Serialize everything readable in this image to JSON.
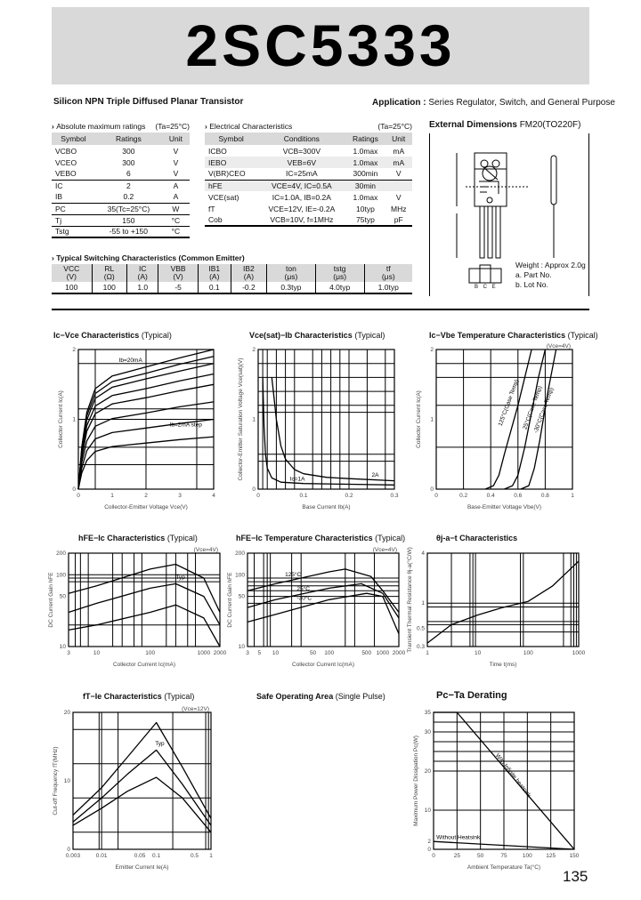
{
  "header": {
    "part_number": "2SC5333"
  },
  "subtitle": "Silicon NPN Triple Diffused Planar Transistor",
  "application": {
    "label": "Application :",
    "value": "Series Regulator, Switch, and General Purpose"
  },
  "abs_max": {
    "title": "Absolute maximum ratings",
    "cond": "(Ta=25°C)",
    "headers": [
      "Symbol",
      "Ratings",
      "Unit"
    ],
    "rows": [
      [
        "VCBO",
        "300",
        "V"
      ],
      [
        "VCEO",
        "300",
        "V"
      ],
      [
        "VEBO",
        "6",
        "V"
      ],
      [
        "IC",
        "2",
        "A"
      ],
      [
        "IB",
        "0.2",
        "A"
      ],
      [
        "PC",
        "35(Tc=25°C)",
        "W"
      ],
      [
        "Tj",
        "150",
        "°C"
      ],
      [
        "Tstg",
        "-55 to +150",
        "°C"
      ]
    ]
  },
  "elec": {
    "title": "Electrical Characteristics",
    "cond": "(Ta=25°C)",
    "headers": [
      "Symbol",
      "Conditions",
      "Ratings",
      "Unit"
    ],
    "rows": [
      [
        "ICBO",
        "VCB=300V",
        "1.0max",
        "mA"
      ],
      [
        "IEBO",
        "VEB=6V",
        "1.0max",
        "mA"
      ],
      [
        "V(BR)CEO",
        "IC=25mA",
        "300min",
        "V"
      ],
      [
        "hFE",
        "VCE=4V, IC=0.5A",
        "30min",
        ""
      ],
      [
        "VCE(sat)",
        "IC=1.0A, IB=0.2A",
        "1.0max",
        "V"
      ],
      [
        "fT",
        "VCE=12V, IE=-0.2A",
        "10typ",
        "MHz"
      ],
      [
        "Cob",
        "VCB=10V, f=1MHz",
        "75typ",
        "pF"
      ]
    ]
  },
  "switching": {
    "title": "Typical Switching Characteristics (Common Emitter)",
    "headers": [
      [
        "VCC",
        "(V)"
      ],
      [
        "RL",
        "(Ω)"
      ],
      [
        "IC",
        "(A)"
      ],
      [
        "VBB",
        "(V)"
      ],
      [
        "IB1",
        "(A)"
      ],
      [
        "IB2",
        "(A)"
      ],
      [
        "ton",
        "(μs)"
      ],
      [
        "tstg",
        "(μs)"
      ],
      [
        "tf",
        "(μs)"
      ]
    ],
    "rows": [
      [
        "100",
        "100",
        "1.0",
        "-5",
        "0.1",
        "-0.2",
        "0.3typ",
        "4.0typ",
        "1.0typ"
      ]
    ]
  },
  "external": {
    "title": "External Dimensions",
    "package": "FM20(TO220F)",
    "weight": "Weight : Approx 2.0g",
    "notes": [
      "a. Part No.",
      "b. Lot No."
    ],
    "pins": "B C E"
  },
  "page_number": "135",
  "chart_data": [
    {
      "id": "ic-vce",
      "type": "line",
      "title": "Ic−Vce Characteristics",
      "note": "(Typical)",
      "xlabel": "Collector-Emitter Voltage Vce(V)",
      "ylabel": "Collector Current Ic(A)",
      "xlim": [
        0,
        4
      ],
      "ylim": [
        0,
        2
      ],
      "xticks": [
        0,
        1,
        2,
        3,
        4
      ],
      "yticks": [
        0,
        1,
        2
      ],
      "grid_x": [
        0.5,
        2,
        3.5
      ],
      "grid_y": [
        0.35,
        0.6,
        1,
        1.15,
        1.8
      ],
      "series": [
        {
          "x": [
            0,
            0.1,
            0.25,
            0.5,
            1,
            2,
            3,
            4
          ],
          "values": [
            0,
            0.6,
            1.1,
            1.44,
            1.62,
            1.75,
            1.88,
            2.0
          ]
        },
        {
          "x": [
            0,
            0.1,
            0.25,
            0.5,
            1,
            2,
            3,
            4
          ],
          "values": [
            0,
            0.57,
            1.05,
            1.37,
            1.54,
            1.66,
            1.79,
            1.9
          ]
        },
        {
          "x": [
            0,
            0.1,
            0.25,
            0.5,
            1,
            2,
            3,
            4
          ],
          "values": [
            0,
            0.54,
            0.99,
            1.3,
            1.46,
            1.58,
            1.69,
            1.8
          ]
        },
        {
          "x": [
            0,
            0.1,
            0.25,
            0.5,
            1,
            2,
            3,
            4
          ],
          "values": [
            0,
            0.5,
            0.91,
            1.19,
            1.34,
            1.44,
            1.55,
            1.65
          ]
        },
        {
          "x": [
            0,
            0.1,
            0.25,
            0.5,
            1,
            2,
            3,
            4
          ],
          "values": [
            0,
            0.45,
            0.83,
            1.08,
            1.22,
            1.31,
            1.41,
            1.5
          ]
        },
        {
          "x": [
            0,
            0.1,
            0.25,
            0.5,
            1,
            2,
            3,
            4
          ],
          "values": [
            0,
            0.38,
            0.69,
            0.9,
            1.01,
            1.09,
            1.18,
            1.25
          ]
        },
        {
          "x": [
            0,
            0.1,
            0.25,
            0.5,
            1,
            2,
            3,
            4
          ],
          "values": [
            0,
            0.3,
            0.55,
            0.72,
            0.81,
            0.875,
            0.94,
            1.0
          ]
        },
        {
          "x": [
            0,
            0.1,
            0.25,
            0.5,
            1,
            2,
            3,
            4
          ],
          "values": [
            0,
            0.23,
            0.41,
            0.54,
            0.61,
            0.66,
            0.71,
            0.75
          ]
        }
      ],
      "annotations": [
        {
          "text": "Ib=20mA",
          "x": 1.2,
          "y": 1.82
        },
        {
          "text": "Ib=2mA step",
          "x": 2.7,
          "y": 0.9
        }
      ]
    },
    {
      "id": "vcesat-ib",
      "type": "line",
      "title": "Vce(sat)−Ib Characteristics",
      "note": "(Typical)",
      "xlabel": "Base Current Ib(A)",
      "ylabel": "Collector-Emitter Saturation Voltage Vce(sat)(V)",
      "xlim": [
        0,
        0.3
      ],
      "ylim": [
        0,
        2
      ],
      "xticks": [
        0,
        0.1,
        0.2,
        0.3
      ],
      "yticks": [
        0,
        1,
        2
      ],
      "grid_x": [
        0.01,
        0.02,
        0.04,
        0.06,
        0.08,
        0.12,
        0.14,
        0.16,
        0.18,
        0.2,
        0.24,
        0.28
      ],
      "grid_y": [
        0.4,
        0.5,
        1.1,
        1.2,
        1.4,
        1.6,
        1.8
      ],
      "series": [
        {
          "name": "Ic=1A",
          "x": [
            0.01,
            0.013,
            0.016,
            0.02,
            0.03,
            0.05,
            0.1,
            0.2,
            0.3
          ],
          "values": [
            1.6,
            0.9,
            0.5,
            0.3,
            0.16,
            0.1,
            0.08,
            0.07,
            0.06
          ]
        },
        {
          "name": "2A",
          "x": [
            0.03,
            0.035,
            0.04,
            0.05,
            0.06,
            0.08,
            0.1,
            0.15,
            0.2,
            0.3
          ],
          "values": [
            1.6,
            1.3,
            1.0,
            0.62,
            0.43,
            0.28,
            0.22,
            0.17,
            0.15,
            0.12
          ]
        }
      ],
      "annotations": [
        {
          "text": "Ic=1A",
          "x": 0.07,
          "y": 0.12
        },
        {
          "text": "2A",
          "x": 0.25,
          "y": 0.18
        }
      ]
    },
    {
      "id": "ic-vbe-temp",
      "type": "line",
      "title": "Ic−Vbe Temperature Characteristics",
      "note": "(Typical)",
      "cond": "(Vce=4V)",
      "xlabel": "Base-Emitter Voltage Vbe(V)",
      "ylabel": "Collector Current Ic(A)",
      "xlim": [
        0,
        1.0
      ],
      "ylim": [
        0,
        2
      ],
      "xticks": [
        0,
        0.2,
        0.4,
        0.6,
        0.8,
        1.0
      ],
      "yticks": [
        0,
        1,
        2
      ],
      "grid_x": [
        0.2,
        0.4,
        0.6,
        0.8
      ],
      "grid_y": [
        0.6,
        1.2,
        1.6,
        1.8
      ],
      "series": [
        {
          "name": "125°C(Case Temp)",
          "x": [
            0.36,
            0.42,
            0.46,
            0.5,
            0.6,
            0.7
          ],
          "values": [
            0,
            0.05,
            0.2,
            0.5,
            1.2,
            2.0
          ]
        },
        {
          "name": "25°C(Case Temp)",
          "x": [
            0.5,
            0.56,
            0.6,
            0.65,
            0.75,
            0.8
          ],
          "values": [
            0,
            0.05,
            0.2,
            0.6,
            1.6,
            2.0
          ]
        },
        {
          "name": "-30°C(Case Temp)",
          "x": [
            0.62,
            0.68,
            0.72,
            0.76,
            0.82,
            0.88
          ],
          "values": [
            0,
            0.05,
            0.3,
            0.7,
            1.4,
            2.0
          ]
        }
      ],
      "annotations": [
        {
          "text": "125°C(Case Temp)",
          "x": 0.48,
          "y": 0.9,
          "rotate": true
        },
        {
          "text": "25°C(Case Temp)",
          "x": 0.66,
          "y": 0.85,
          "rotate": true
        },
        {
          "text": "-30°C(Case Temp)",
          "x": 0.74,
          "y": 0.8,
          "rotate": true
        }
      ]
    },
    {
      "id": "hfe-ic",
      "type": "line",
      "title": "hFE−Ic Characteristics",
      "note": "(Typical)",
      "cond": "(Vce=4V)",
      "xlabel": "Collector Current Ic(mA)",
      "ylabel": "DC Current Gain hFE",
      "xscale": "log",
      "yscale": "log",
      "xlim": [
        3,
        2000
      ],
      "ylim": [
        10,
        200
      ],
      "xticks": [
        3,
        10,
        100,
        1000,
        2000
      ],
      "yticks": [
        10,
        50,
        100,
        200
      ],
      "grid_x": [
        4,
        5,
        7,
        20,
        30,
        50,
        70,
        200,
        300,
        500,
        700
      ],
      "grid_y": [
        20,
        80,
        90,
        100
      ],
      "series": [
        {
          "name": "max",
          "x": [
            3,
            10,
            100,
            300,
            1000,
            2000
          ],
          "values": [
            55,
            70,
            120,
            140,
            90,
            30
          ]
        },
        {
          "name": "Typ",
          "x": [
            3,
            10,
            100,
            300,
            1000,
            2000
          ],
          "values": [
            30,
            40,
            65,
            75,
            50,
            20
          ]
        },
        {
          "name": "min",
          "x": [
            3,
            10,
            100,
            300,
            1000,
            2000
          ],
          "values": [
            17,
            20,
            30,
            38,
            25,
            10
          ]
        }
      ],
      "annotations": [
        {
          "text": "Typ",
          "x": 300,
          "y": 88
        }
      ]
    },
    {
      "id": "hfe-ic-temp",
      "type": "line",
      "title": "hFE−Ic Temperature Characteristics",
      "note": "(Typical)",
      "cond": "(Vce=4V)",
      "xlabel": "Collector Current Ic(mA)",
      "ylabel": "DC Current Gain hFE",
      "xscale": "log",
      "yscale": "log",
      "xlim": [
        3,
        2000
      ],
      "ylim": [
        10,
        200
      ],
      "xticks": [
        3,
        5,
        10,
        50,
        100,
        500,
        1000,
        2000
      ],
      "yticks": [
        10,
        50,
        100,
        200
      ],
      "grid_x": [
        4,
        6,
        7,
        8,
        20,
        30,
        200,
        300,
        700
      ],
      "grid_y": [
        40,
        50,
        60,
        70,
        80,
        90
      ],
      "series": [
        {
          "name": "125°C",
          "x": [
            3,
            10,
            100,
            200,
            600,
            1000,
            2000
          ],
          "values": [
            60,
            75,
            110,
            120,
            95,
            60,
            30
          ]
        },
        {
          "name": "25°C",
          "x": [
            3,
            10,
            100,
            400,
            1000,
            2000
          ],
          "values": [
            35,
            45,
            65,
            75,
            55,
            25
          ]
        },
        {
          "name": "-30°C",
          "x": [
            3,
            10,
            100,
            500,
            1000,
            2000
          ],
          "values": [
            22,
            28,
            45,
            55,
            50,
            15
          ]
        }
      ],
      "annotations": [
        {
          "text": "125°C",
          "x": 15,
          "y": 95
        },
        {
          "text": "25°C",
          "x": 25,
          "y": 60
        },
        {
          "text": "-30°C",
          "x": 25,
          "y": 45
        }
      ]
    },
    {
      "id": "theta-t",
      "type": "line",
      "title": "θj-a−t Characteristics",
      "note": "",
      "xlabel": "Time t(ms)",
      "ylabel": "Transient Thermal Resistance θj-a(°C/W)",
      "xscale": "log",
      "yscale": "log",
      "xlim": [
        1,
        1000
      ],
      "ylim": [
        0.3,
        4
      ],
      "xticks": [
        1,
        10,
        100,
        1000
      ],
      "yticks": [
        0.3,
        0.5,
        1,
        4
      ],
      "grid_x": [
        3,
        7,
        8,
        9,
        70,
        80,
        500,
        700,
        800,
        900
      ],
      "grid_y": [
        0.45,
        0.55,
        0.6,
        0.9,
        1
      ],
      "series": [
        {
          "x": [
            1,
            3,
            10,
            30,
            100,
            300,
            1000
          ],
          "values": [
            0.33,
            0.55,
            0.72,
            0.88,
            1.05,
            1.6,
            3.2
          ]
        }
      ],
      "annotations": []
    },
    {
      "id": "ft-ie",
      "type": "line",
      "title": "fT−Ie Characteristics",
      "note": "(Typical)",
      "cond": "(Vce=12V)",
      "xlabel": "Emitter Current Ie(A)",
      "ylabel": "Cut-off Frequency fT(MHz)",
      "xscale": "log",
      "xlim": [
        0.003,
        1
      ],
      "ylim": [
        0,
        20
      ],
      "xticks": [
        0.003,
        0.01,
        0.05,
        0.1,
        0.5,
        1
      ],
      "yticks": [
        0,
        10,
        20
      ],
      "grid_x": [
        0.009,
        0.01,
        0.02,
        0.2,
        0.8,
        0.9
      ],
      "grid_y": [
        2.5,
        7.5,
        12.5,
        17.5
      ],
      "series": [
        {
          "name": "max",
          "x": [
            0.003,
            0.01,
            0.03,
            0.1,
            0.3,
            1
          ],
          "values": [
            5,
            9,
            13.5,
            18.5,
            12,
            4.5
          ]
        },
        {
          "name": "Typ",
          "x": [
            0.003,
            0.01,
            0.03,
            0.1,
            0.3,
            1
          ],
          "values": [
            4,
            7.5,
            11,
            14.5,
            9.5,
            3.5
          ]
        },
        {
          "name": "min",
          "x": [
            0.003,
            0.01,
            0.03,
            0.1,
            0.3,
            1
          ],
          "values": [
            3.5,
            6,
            8.5,
            10.5,
            7.5,
            2.5
          ]
        }
      ],
      "annotations": [
        {
          "text": "Typ",
          "x": 0.095,
          "y": 15.2
        }
      ]
    },
    {
      "id": "soa",
      "type": "line",
      "title": "Safe Operating Area",
      "note": "(Single Pulse)",
      "series": []
    },
    {
      "id": "pc-ta",
      "type": "line",
      "title": "Pc−Ta Derating",
      "note": "",
      "xlabel": "Ambient Temperature Ta(°C)",
      "ylabel": "Maximum Power Dissipation Pc(W)",
      "xlim": [
        0,
        150
      ],
      "ylim": [
        0,
        35
      ],
      "xticks": [
        0,
        25,
        50,
        75,
        100,
        125,
        150
      ],
      "yticks": [
        0,
        2,
        10,
        20,
        30,
        35
      ],
      "grid_x": [
        25,
        50,
        75,
        100,
        125
      ],
      "grid_y": [
        10,
        20,
        22.5,
        25,
        27.5,
        30,
        32.5
      ],
      "series": [
        {
          "name": "With Infinite heatsink",
          "x": [
            0,
            25,
            150
          ],
          "values": [
            35,
            35,
            0
          ]
        },
        {
          "name": "Without Heatsink",
          "x": [
            0,
            150
          ],
          "values": [
            2,
            0
          ]
        }
      ],
      "annotations": [
        {
          "text": "With Infinite heatsink",
          "x": 66,
          "y": 24,
          "rotate": true,
          "angle": 52
        },
        {
          "text": "Without Heatsink",
          "x": 3,
          "y": 2.6
        }
      ]
    }
  ]
}
